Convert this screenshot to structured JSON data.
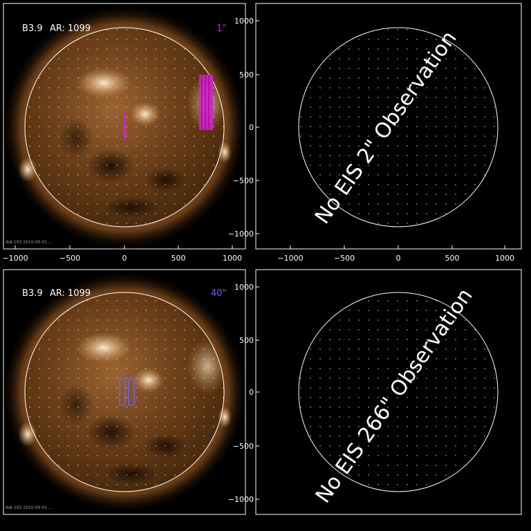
{
  "panels": [
    {
      "id": "top-left",
      "flare_label": "B3.9",
      "ar_label": "AR: 1099",
      "slit_label": "1\"",
      "slit_color": "#d51fd0",
      "footer": "AIA 193 2010-09-01 ...",
      "x_ticks": [
        "−1000",
        "−500",
        "0",
        "500",
        "1000"
      ],
      "y_ticks": [],
      "has_image": true
    },
    {
      "id": "top-right",
      "message": "No EIS 2\" Observation",
      "x_ticks": [
        "−1000",
        "−500",
        "0",
        "500",
        "1000"
      ],
      "y_ticks": [
        "1000",
        "500",
        "0",
        "−500",
        "−1000"
      ],
      "has_image": false
    },
    {
      "id": "bottom-left",
      "flare_label": "B3.9",
      "ar_label": "AR: 1099",
      "slit_label": "40\"",
      "slit_color": "#6f63ef",
      "footer": "AIA 193 2010-09-01 ...",
      "x_ticks": [],
      "y_ticks": [],
      "has_image": true
    },
    {
      "id": "bottom-right",
      "message": "No EIS 266\" Observation",
      "x_ticks": [],
      "y_ticks": [
        "1000",
        "500",
        "0",
        "−500",
        "−1000"
      ],
      "has_image": false
    }
  ],
  "colors": {
    "background": "#000000",
    "frame": "#ffffff",
    "sun_dark": "#3a1f0a",
    "sun_mid": "#8a5526",
    "sun_bright": "#f3d6a8"
  }
}
